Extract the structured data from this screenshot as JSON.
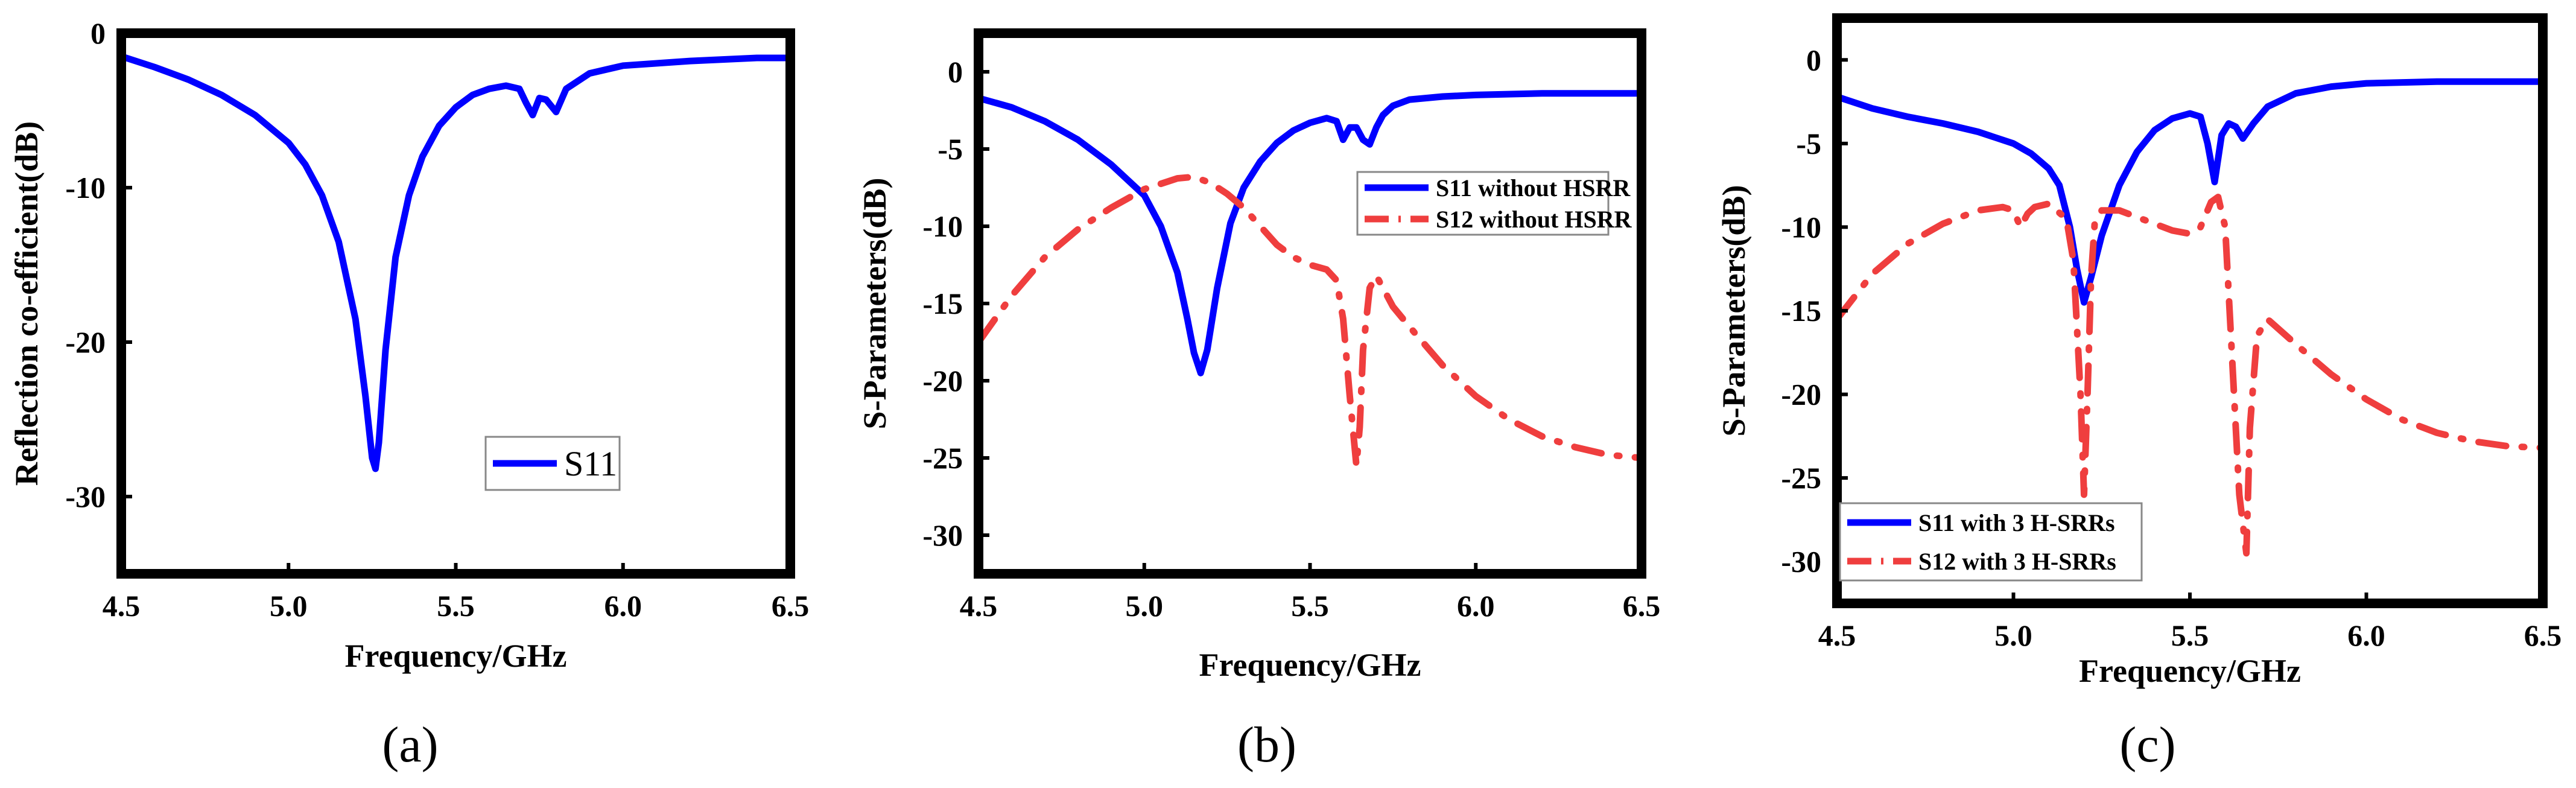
{
  "chart_data": [
    {
      "type": "line",
      "caption": "(a)",
      "xlabel": "Frequency/GHz",
      "ylabel": "Reflection co-efficient(dB)",
      "xlim": [
        4.5,
        6.5
      ],
      "ylim": [
        -35,
        0
      ],
      "xticks": [
        "4.5",
        "5.0",
        "5.5",
        "6.0",
        "6.5"
      ],
      "yticks": [
        "0",
        "-10",
        "-20",
        "-30"
      ],
      "legend_position": "lower-right",
      "legend_style": "plain",
      "series": [
        {
          "name": "S11",
          "color": "#0000ff",
          "style": "solid",
          "x": [
            4.5,
            4.6,
            4.7,
            4.8,
            4.9,
            5.0,
            5.05,
            5.1,
            5.15,
            5.2,
            5.23,
            5.25,
            5.26,
            5.27,
            5.29,
            5.32,
            5.36,
            5.4,
            5.45,
            5.5,
            5.55,
            5.6,
            5.65,
            5.69,
            5.71,
            5.73,
            5.75,
            5.77,
            5.8,
            5.83,
            5.9,
            6.0,
            6.2,
            6.4,
            6.5
          ],
          "y": [
            -1.5,
            -2.2,
            -3.0,
            -4.0,
            -5.3,
            -7.1,
            -8.5,
            -10.5,
            -13.5,
            -18.5,
            -23.5,
            -27.5,
            -28.2,
            -26.5,
            -20.5,
            -14.5,
            -10.5,
            -8.0,
            -6.0,
            -4.8,
            -4.0,
            -3.6,
            -3.4,
            -3.6,
            -4.5,
            -5.3,
            -4.2,
            -4.3,
            -5.1,
            -3.6,
            -2.6,
            -2.1,
            -1.8,
            -1.6,
            -1.6
          ]
        }
      ]
    },
    {
      "type": "line",
      "caption": "(b)",
      "xlabel": "Frequency/GHz",
      "ylabel": "S-Parameters(dB)",
      "xlim": [
        4.5,
        6.5
      ],
      "ylim": [
        -32.5,
        2.5
      ],
      "xticks": [
        "4.5",
        "5.0",
        "5.5",
        "6.0",
        "6.5"
      ],
      "yticks": [
        "0",
        "-5",
        "-10",
        "-15",
        "-20",
        "-25",
        "-30"
      ],
      "legend_position": "top-right",
      "legend_style": "bold",
      "series": [
        {
          "name": "S11 without HSRR",
          "color": "#0000ff",
          "style": "solid",
          "x": [
            4.5,
            4.6,
            4.7,
            4.8,
            4.9,
            5.0,
            5.05,
            5.1,
            5.13,
            5.15,
            5.17,
            5.19,
            5.22,
            5.26,
            5.3,
            5.35,
            5.4,
            5.45,
            5.5,
            5.55,
            5.58,
            5.6,
            5.62,
            5.64,
            5.66,
            5.68,
            5.7,
            5.72,
            5.75,
            5.8,
            5.9,
            6.0,
            6.2,
            6.4,
            6.5
          ],
          "y": [
            -1.7,
            -2.3,
            -3.2,
            -4.4,
            -6.0,
            -8.0,
            -10.0,
            -13.0,
            -16.0,
            -18.2,
            -19.5,
            -18.0,
            -14.0,
            -9.8,
            -7.5,
            -5.8,
            -4.6,
            -3.8,
            -3.3,
            -3.0,
            -3.2,
            -4.4,
            -3.6,
            -3.6,
            -4.4,
            -4.7,
            -3.6,
            -2.8,
            -2.2,
            -1.8,
            -1.6,
            -1.5,
            -1.4,
            -1.4,
            -1.4
          ]
        },
        {
          "name": "S12 without HSRR",
          "color": "#ef3e3e",
          "style": "dashdot",
          "x": [
            4.5,
            4.6,
            4.7,
            4.8,
            4.9,
            5.0,
            5.1,
            5.15,
            5.2,
            5.25,
            5.3,
            5.35,
            5.4,
            5.45,
            5.5,
            5.55,
            5.58,
            5.6,
            5.62,
            5.64,
            5.65,
            5.66,
            5.68,
            5.7,
            5.72,
            5.75,
            5.8,
            5.9,
            6.0,
            6.1,
            6.2,
            6.3,
            6.4,
            6.5
          ],
          "y": [
            -17.5,
            -14.5,
            -12.0,
            -10.2,
            -8.8,
            -7.6,
            -6.9,
            -6.8,
            -7.2,
            -7.9,
            -8.8,
            -10.0,
            -11.2,
            -12.0,
            -12.5,
            -12.8,
            -13.5,
            -16.0,
            -21.0,
            -25.5,
            -23.0,
            -18.0,
            -14.0,
            -13.2,
            -14.0,
            -15.2,
            -16.5,
            -19.0,
            -21.0,
            -22.5,
            -23.6,
            -24.3,
            -24.8,
            -25.0
          ]
        }
      ]
    },
    {
      "type": "line",
      "caption": "(c)",
      "xlabel": "Frequency/GHz",
      "ylabel": "S-Parameters(dB)",
      "xlim": [
        4.5,
        6.5
      ],
      "ylim": [
        -32.5,
        2.5
      ],
      "xticks": [
        "4.5",
        "5.0",
        "5.5",
        "6.0",
        "6.5"
      ],
      "yticks": [
        "0",
        "-5",
        "-10",
        "-15",
        "-20",
        "-25",
        "-30"
      ],
      "legend_position": "bottom-left",
      "legend_style": "bold",
      "series": [
        {
          "name": "S11 with 3 H-SRRs",
          "color": "#0000ff",
          "style": "solid",
          "x": [
            4.5,
            4.6,
            4.7,
            4.8,
            4.9,
            5.0,
            5.05,
            5.1,
            5.13,
            5.16,
            5.18,
            5.2,
            5.22,
            5.25,
            5.3,
            5.35,
            5.4,
            5.45,
            5.5,
            5.53,
            5.55,
            5.57,
            5.59,
            5.61,
            5.63,
            5.65,
            5.68,
            5.72,
            5.8,
            5.9,
            6.0,
            6.2,
            6.4,
            6.5
          ],
          "y": [
            -2.2,
            -2.9,
            -3.4,
            -3.8,
            -4.3,
            -5.0,
            -5.6,
            -6.5,
            -7.5,
            -10.0,
            -12.5,
            -14.5,
            -13.0,
            -10.5,
            -7.5,
            -5.5,
            -4.2,
            -3.5,
            -3.2,
            -3.4,
            -5.0,
            -7.3,
            -4.5,
            -3.8,
            -4.0,
            -4.7,
            -3.8,
            -2.8,
            -2.0,
            -1.6,
            -1.4,
            -1.3,
            -1.3,
            -1.3
          ]
        },
        {
          "name": "S12 with 3 H-SRRs",
          "color": "#ef3e3e",
          "style": "dashdot",
          "x": [
            4.5,
            4.6,
            4.7,
            4.8,
            4.9,
            4.97,
            5.0,
            5.02,
            5.04,
            5.06,
            5.1,
            5.15,
            5.17,
            5.19,
            5.2,
            5.21,
            5.22,
            5.23,
            5.25,
            5.3,
            5.35,
            5.4,
            5.45,
            5.5,
            5.53,
            5.56,
            5.58,
            5.6,
            5.62,
            5.64,
            5.66,
            5.67,
            5.69,
            5.72,
            5.8,
            5.9,
            6.0,
            6.1,
            6.2,
            6.3,
            6.4,
            6.5
          ],
          "y": [
            -15.5,
            -12.8,
            -11.0,
            -9.8,
            -9.0,
            -8.8,
            -9.0,
            -10.0,
            -9.2,
            -8.8,
            -8.6,
            -9.5,
            -12.0,
            -20.0,
            -26.0,
            -20.0,
            -13.0,
            -9.8,
            -9.0,
            -9.0,
            -9.4,
            -9.8,
            -10.2,
            -10.4,
            -10.0,
            -8.5,
            -8.2,
            -10.0,
            -18.0,
            -26.0,
            -29.5,
            -22.0,
            -16.5,
            -15.5,
            -17.0,
            -18.8,
            -20.3,
            -21.5,
            -22.3,
            -22.8,
            -23.1,
            -23.2
          ]
        }
      ]
    }
  ]
}
